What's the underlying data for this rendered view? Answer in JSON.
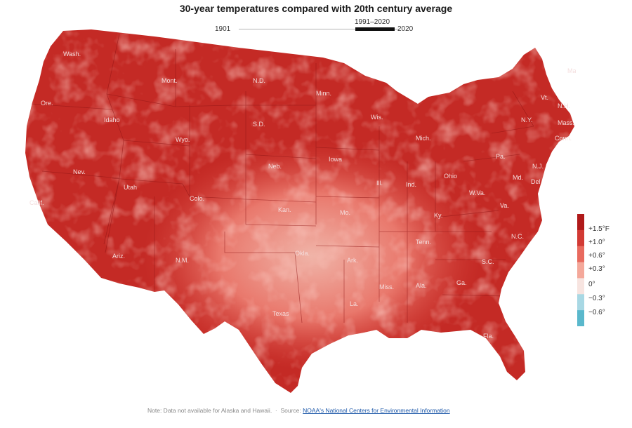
{
  "title": "30-year temperatures compared with 20th century average",
  "timeline": {
    "start": "1901",
    "selected": "1991–2020",
    "end": "2020"
  },
  "legend": {
    "ticks": [
      "+1.5°F",
      "+1.0°",
      "+0.6°",
      "+0.3°",
      "0°",
      "−0.3°",
      "−0.6°"
    ],
    "colors": [
      "#b01a1a",
      "#d23a34",
      "#e86a5e",
      "#f4a89a",
      "#f7e4e0",
      "#a8d8e4",
      "#5ab8cc"
    ]
  },
  "states": [
    "Wash.",
    "Ore.",
    "Calif.",
    "Nev.",
    "Idaho",
    "Mont.",
    "Wyo.",
    "Utah",
    "Ariz.",
    "Colo.",
    "N.M.",
    "N.D.",
    "S.D.",
    "Neb.",
    "Kan.",
    "Okla.",
    "Texas",
    "Minn.",
    "Iowa",
    "Mo.",
    "Ark.",
    "La.",
    "Wis.",
    "Ill.",
    "Miss.",
    "Mich.",
    "Ind.",
    "Ky.",
    "Tenn.",
    "Ala.",
    "Ohio",
    "Ga.",
    "Fla.",
    "S.C.",
    "N.C.",
    "Va.",
    "W.Va.",
    "Pa.",
    "N.Y.",
    "Vt.",
    "N.H.",
    "Maine",
    "Mass.",
    "Conn.",
    "N.J.",
    "Md.",
    "Del."
  ],
  "footnote": {
    "note": "Note: Data not available for Alaska and Hawaii.",
    "source_label": "Source:",
    "source_link": "NOAA's National Centers for Environmental Information"
  }
}
